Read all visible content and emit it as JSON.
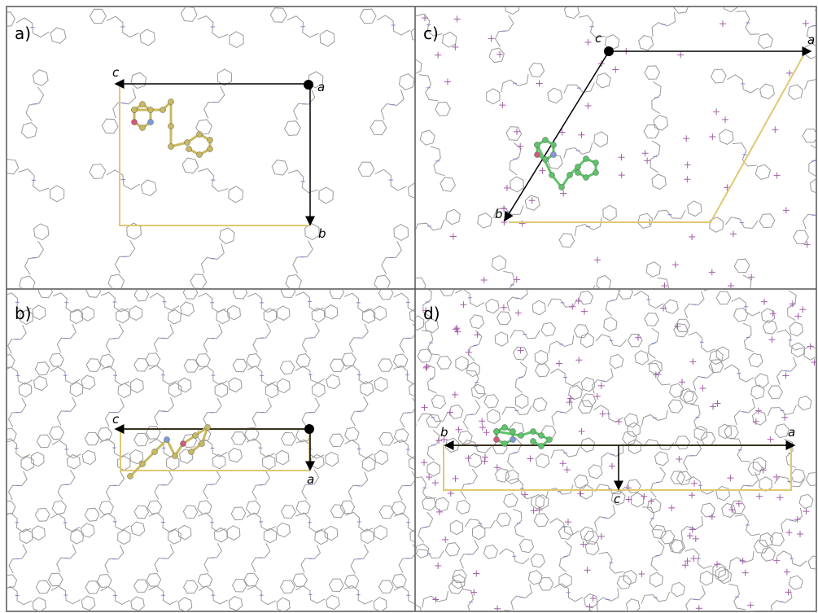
{
  "panels": [
    {
      "label": "a)",
      "axes": [
        "c",
        "a",
        "b"
      ]
    },
    {
      "label": "b)",
      "axes": [
        "c",
        "a"
      ]
    },
    {
      "label": "c)",
      "axes": [
        "c",
        "a",
        "b"
      ]
    },
    {
      "label": "d)",
      "axes": [
        "b",
        "a",
        "c"
      ]
    }
  ]
}
